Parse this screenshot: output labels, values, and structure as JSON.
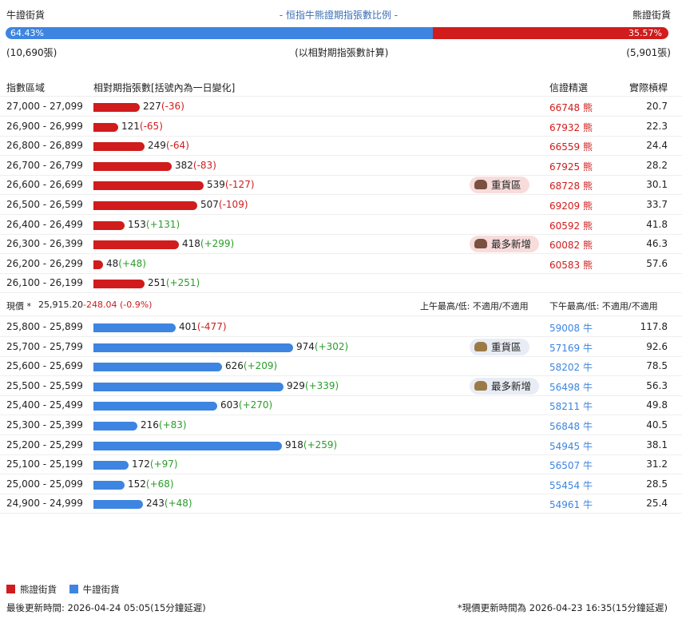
{
  "header": {
    "bull_label": "牛證街貨",
    "title": "- 恒指牛熊證期指張數比例 -",
    "bear_label": "熊證街貨",
    "bull_pct": "64.43%",
    "bear_pct": "35.57%",
    "bull_fraction": 0.6443,
    "bull_count": "(10,690張)",
    "note": "(以相對期指張數計算)",
    "bear_count": "(5,901張)"
  },
  "columns": {
    "range": "指數區域",
    "contracts": "相對期指張數[括號內為一日變化]",
    "cbbc": "信證精選",
    "leverage": "實際槓桿"
  },
  "bear_rows": [
    {
      "range": "27,000 - 27,099",
      "value": 227,
      "value_text": "227",
      "change": "(-36)",
      "cbbc": "66748 熊",
      "leverage": "20.7"
    },
    {
      "range": "26,900 - 26,999",
      "value": 121,
      "value_text": "121",
      "change": "(-65)",
      "cbbc": "67932 熊",
      "leverage": "22.3"
    },
    {
      "range": "26,800 - 26,899",
      "value": 249,
      "value_text": "249",
      "change": "(-64)",
      "cbbc": "66559 熊",
      "leverage": "24.4"
    },
    {
      "range": "26,700 - 26,799",
      "value": 382,
      "value_text": "382",
      "change": "(-83)",
      "cbbc": "67925 熊",
      "leverage": "28.2"
    },
    {
      "range": "26,600 - 26,699",
      "value": 539,
      "value_text": "539",
      "change": "(-127)",
      "badge": "重貨區",
      "cbbc": "68728 熊",
      "leverage": "30.1"
    },
    {
      "range": "26,500 - 26,599",
      "value": 507,
      "value_text": "507",
      "change": "(-109)",
      "cbbc": "69209 熊",
      "leverage": "33.7"
    },
    {
      "range": "26,400 - 26,499",
      "value": 153,
      "value_text": "153",
      "change": "(+131)",
      "cbbc": "60592 熊",
      "leverage": "41.8"
    },
    {
      "range": "26,300 - 26,399",
      "value": 418,
      "value_text": "418",
      "change": "(+299)",
      "badge": "最多新增",
      "cbbc": "60082 熊",
      "leverage": "46.3"
    },
    {
      "range": "26,200 - 26,299",
      "value": 48,
      "value_text": "48",
      "change": "(+48)",
      "cbbc": "60583 熊",
      "leverage": "57.6"
    },
    {
      "range": "26,100 - 26,199",
      "value": 251,
      "value_text": "251",
      "change": "(+251)"
    }
  ],
  "current": {
    "label": "現價 *",
    "price": "25,915.20",
    "change": "-248.04 (-0.9%)",
    "am": "上午最高/低: 不適用/不適用",
    "pm": "下午最高/低: 不適用/不適用"
  },
  "bull_rows": [
    {
      "range": "25,800 - 25,899",
      "value": 401,
      "value_text": "401",
      "change": "(-477)",
      "cbbc": "59008 牛",
      "leverage": "117.8"
    },
    {
      "range": "25,700 - 25,799",
      "value": 974,
      "value_text": "974",
      "change": "(+302)",
      "badge": "重貨區",
      "cbbc": "57169 牛",
      "leverage": "92.6"
    },
    {
      "range": "25,600 - 25,699",
      "value": 626,
      "value_text": "626",
      "change": "(+209)",
      "cbbc": "58202 牛",
      "leverage": "78.5"
    },
    {
      "range": "25,500 - 25,599",
      "value": 929,
      "value_text": "929",
      "change": "(+339)",
      "badge": "最多新增",
      "cbbc": "56498 牛",
      "leverage": "56.3"
    },
    {
      "range": "25,400 - 25,499",
      "value": 603,
      "value_text": "603",
      "change": "(+270)",
      "cbbc": "58211 牛",
      "leverage": "49.8"
    },
    {
      "range": "25,300 - 25,399",
      "value": 216,
      "value_text": "216",
      "change": "(+83)",
      "cbbc": "56848 牛",
      "leverage": "40.5"
    },
    {
      "range": "25,200 - 25,299",
      "value": 918,
      "value_text": "918",
      "change": "(+259)",
      "cbbc": "54945 牛",
      "leverage": "38.1"
    },
    {
      "range": "25,100 - 25,199",
      "value": 172,
      "value_text": "172",
      "change": "(+97)",
      "cbbc": "56507 牛",
      "leverage": "31.2"
    },
    {
      "range": "25,000 - 25,099",
      "value": 152,
      "value_text": "152",
      "change": "(+68)",
      "cbbc": "55454 牛",
      "leverage": "28.5"
    },
    {
      "range": "24,900 - 24,999",
      "value": 243,
      "value_text": "243",
      "change": "(+48)",
      "cbbc": "54961 牛",
      "leverage": "25.4"
    }
  ],
  "legend": {
    "bear": "熊證街貨",
    "bull": "牛證街貨"
  },
  "footer": {
    "last_update": "最後更新時間: 2026-04-24 05:05(15分鐘延遲)",
    "price_update": "*現價更新時間為 2026-04-23 16:35(15分鐘延遲)"
  },
  "colors": {
    "bear": "#d01c1c",
    "bull": "#3d85e0"
  }
}
